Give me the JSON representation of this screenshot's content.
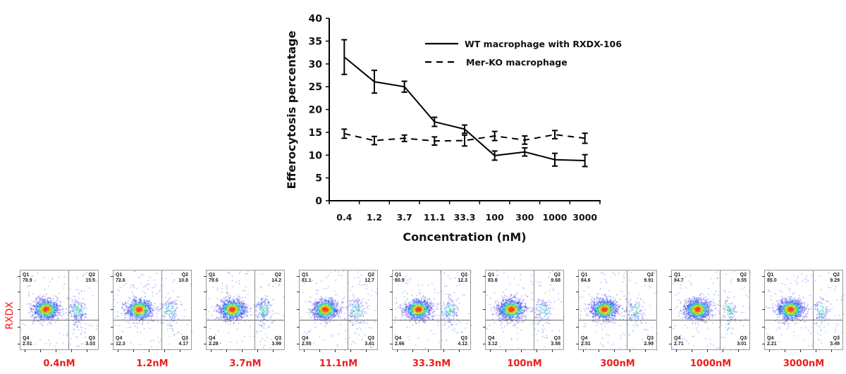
{
  "chart_data": [
    {
      "type": "line",
      "title": "",
      "xlabel": "Concentration (nM)",
      "ylabel": "Efferocytosis percentage",
      "categories": [
        "0.4",
        "1.2",
        "3.7",
        "11.1",
        "33.3",
        "100",
        "300",
        "1000",
        "3000"
      ],
      "ylim": [
        0,
        40
      ],
      "yticks": [
        0,
        5,
        10,
        15,
        20,
        25,
        30,
        35,
        40
      ],
      "grid": false,
      "legend_position": "top-right",
      "series": [
        {
          "name": "WT macrophage with RXDX-106",
          "style": "solid",
          "values": [
            31.5,
            26.1,
            25.0,
            17.3,
            15.7,
            9.9,
            10.7,
            9.0,
            8.8
          ],
          "errors": [
            3.8,
            2.5,
            1.2,
            1.0,
            0.9,
            1.0,
            0.9,
            1.4,
            1.3
          ]
        },
        {
          "name": "Mer-KO macrophage",
          "style": "dashed",
          "values": [
            14.7,
            13.2,
            13.7,
            13.1,
            13.2,
            14.2,
            13.3,
            14.5,
            13.7
          ],
          "errors": [
            1.0,
            0.9,
            0.7,
            0.9,
            1.2,
            1.0,
            0.9,
            0.9,
            1.1
          ]
        }
      ]
    },
    {
      "type": "scatter",
      "subtype": "flow-cytometry-quadrant-plots",
      "ylabel": "RXDX",
      "panels": [
        {
          "label": "0.4nM",
          "Q1": "78.9",
          "Q2": "15.5",
          "Q3": "3.03",
          "Q4": "2.51"
        },
        {
          "label": "1.2nM",
          "Q1": "72.6",
          "Q2": "10.8",
          "Q3": "4.17",
          "Q4": "12.3"
        },
        {
          "label": "3.7nM",
          "Q1": "79.6",
          "Q2": "14.2",
          "Q3": "3.99",
          "Q4": "2.28"
        },
        {
          "label": "11.1nM",
          "Q1": "81.1",
          "Q2": "12.7",
          "Q3": "3.61",
          "Q4": "2.55"
        },
        {
          "label": "33.3nM",
          "Q1": "80.9",
          "Q2": "12.3",
          "Q3": "4.12",
          "Q4": "2.66"
        },
        {
          "label": "100nM",
          "Q1": "83.6",
          "Q2": "9.68",
          "Q3": "3.58",
          "Q4": "3.12"
        },
        {
          "label": "300nM",
          "Q1": "84.6",
          "Q2": "9.91",
          "Q3": "2.99",
          "Q4": "2.51"
        },
        {
          "label": "1000nM",
          "Q1": "84.7",
          "Q2": "9.55",
          "Q3": "3.01",
          "Q4": "2.71"
        },
        {
          "label": "3000nM",
          "Q1": "85.0",
          "Q2": "9.29",
          "Q3": "3.49",
          "Q4": "2.21"
        }
      ],
      "quadrant_names": [
        "Q1",
        "Q2",
        "Q3",
        "Q4"
      ]
    }
  ],
  "colors": {
    "line": "#000000",
    "concentration_label": "#ee1c1c",
    "rxdx_label": "#ee1c1c",
    "density_low": "#1a2cf0",
    "density_mid": "#22d0b0",
    "density_high": "#f05010"
  }
}
